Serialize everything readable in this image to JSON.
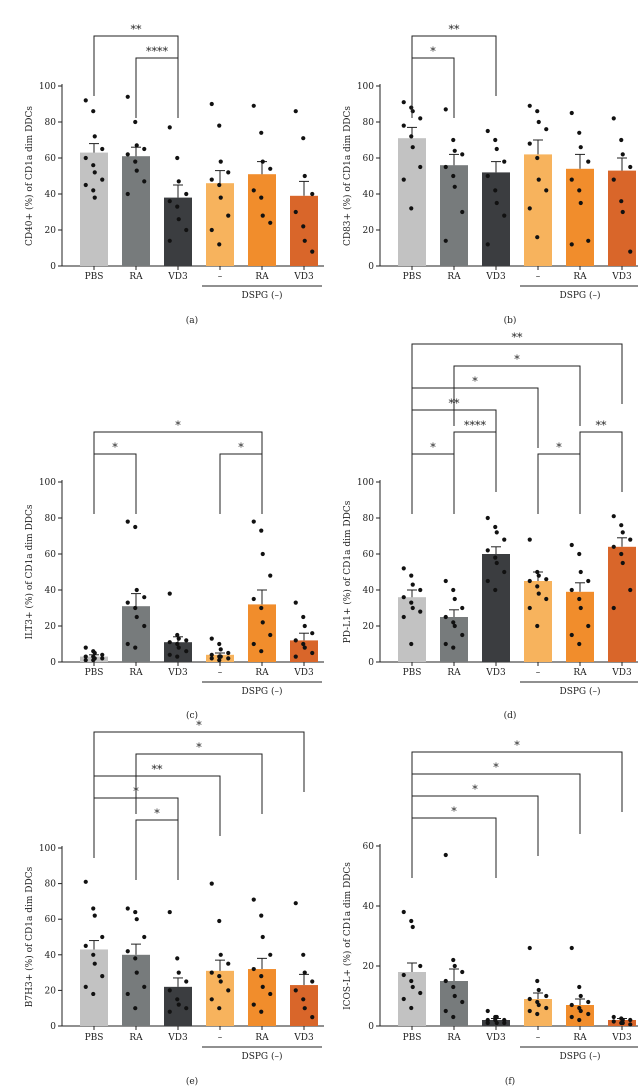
{
  "colors": {
    "PBS": "#c2c2c2",
    "RA": "#777b7c",
    "VD3": "#3b3d40",
    "DSPG_minus": "#f7b35d",
    "DSPG_RA": "#f18d2c",
    "DSPG_VD3": "#d9662a",
    "axis": "#222222",
    "dot": "#111111"
  },
  "chart_data": [
    {
      "type": "bar",
      "panel_label": "(a)",
      "ylabel": "CD40+ (%) of CD1a dim DDCs",
      "categories": [
        "PBS",
        "RA",
        "VD3",
        "–",
        "RA",
        "VD3"
      ],
      "group_label": "DSPG (–)",
      "values": [
        63,
        61,
        38,
        46,
        51,
        39
      ],
      "sem": [
        5,
        5,
        7,
        7,
        7,
        8
      ],
      "points": [
        [
          92,
          86,
          72,
          65,
          60,
          56,
          52,
          48,
          45,
          42,
          38
        ],
        [
          94,
          80,
          67,
          65,
          62,
          58,
          53,
          47,
          40
        ],
        [
          77,
          60,
          47,
          40,
          36,
          33,
          26,
          20,
          14
        ],
        [
          90,
          78,
          58,
          52,
          48,
          45,
          38,
          28,
          20,
          12
        ],
        [
          89,
          74,
          58,
          54,
          42,
          38,
          28,
          24
        ],
        [
          86,
          71,
          50,
          40,
          30,
          22,
          14,
          8
        ]
      ],
      "ylim": [
        0,
        100
      ],
      "yticks": [
        "0",
        "20",
        "40",
        "60",
        "80",
        "100"
      ],
      "significance": [
        {
          "from": 0,
          "to": 2,
          "label": "**"
        },
        {
          "from": 1,
          "to": 2,
          "label": "****"
        }
      ]
    },
    {
      "type": "bar",
      "panel_label": "(b)",
      "ylabel": "CD83+ (%) of CD1a dim DDCs",
      "categories": [
        "PBS",
        "RA",
        "VD3",
        "–",
        "RA",
        "VD3"
      ],
      "group_label": "DSPG (–)",
      "values": [
        71,
        56,
        52,
        62,
        54,
        53
      ],
      "sem": [
        6,
        6,
        6,
        8,
        8,
        7
      ],
      "points": [
        [
          91,
          88,
          86,
          82,
          78,
          72,
          66,
          55,
          48,
          32
        ],
        [
          87,
          70,
          64,
          62,
          55,
          50,
          44,
          30,
          14
        ],
        [
          75,
          70,
          65,
          58,
          50,
          42,
          35,
          28,
          12
        ],
        [
          89,
          86,
          80,
          76,
          68,
          60,
          48,
          42,
          32,
          16
        ],
        [
          85,
          74,
          66,
          58,
          48,
          42,
          35,
          14,
          12
        ],
        [
          82,
          70,
          62,
          55,
          48,
          36,
          30,
          8
        ]
      ],
      "ylim": [
        0,
        100
      ],
      "yticks": [
        "0",
        "20",
        "40",
        "60",
        "80",
        "100"
      ],
      "significance": [
        {
          "from": 0,
          "to": 1,
          "label": "*"
        },
        {
          "from": 0,
          "to": 2,
          "label": "**"
        }
      ]
    },
    {
      "type": "bar",
      "panel_label": "(c)",
      "ylabel": "ILT3+ (%) of CD1a dim DDCs",
      "categories": [
        "PBS",
        "RA",
        "VD3",
        "–",
        "RA",
        "VD3"
      ],
      "group_label": "DSPG (–)",
      "values": [
        3,
        31,
        11,
        4,
        32,
        12
      ],
      "sem": [
        1,
        7,
        3,
        1,
        8,
        4
      ],
      "points": [
        [
          8,
          6,
          5,
          4,
          3,
          3,
          2,
          2,
          1,
          1
        ],
        [
          78,
          75,
          40,
          36,
          33,
          30,
          25,
          20,
          10,
          8
        ],
        [
          38,
          15,
          13,
          12,
          11,
          10,
          8,
          6,
          4,
          3
        ],
        [
          13,
          10,
          7,
          5,
          4,
          3,
          3,
          2,
          2,
          1
        ],
        [
          78,
          73,
          60,
          48,
          35,
          30,
          22,
          15,
          10,
          6
        ],
        [
          33,
          25,
          20,
          16,
          12,
          10,
          8,
          5,
          3
        ]
      ],
      "ylim": [
        0,
        100
      ],
      "yticks": [
        "0",
        "20",
        "40",
        "60",
        "80",
        "100"
      ],
      "significance": [
        {
          "from": 0,
          "to": 1,
          "label": "*"
        },
        {
          "from": 3,
          "to": 4,
          "label": "*"
        },
        {
          "from": 0,
          "to": 4,
          "label": "*"
        }
      ]
    },
    {
      "type": "bar",
      "panel_label": "(d)",
      "ylabel": "PD-L1+ (%) of CD1a dim DDCs",
      "categories": [
        "PBS",
        "RA",
        "VD3",
        "–",
        "RA",
        "VD3"
      ],
      "group_label": "DSPG (–)",
      "values": [
        36,
        25,
        60,
        45,
        39,
        64
      ],
      "sem": [
        4,
        4,
        4,
        5,
        5,
        5
      ],
      "points": [
        [
          52,
          48,
          43,
          40,
          36,
          33,
          30,
          28,
          25,
          10
        ],
        [
          45,
          40,
          35,
          30,
          25,
          22,
          20,
          15,
          10,
          8
        ],
        [
          80,
          75,
          72,
          68,
          62,
          58,
          55,
          50,
          45,
          40
        ],
        [
          68,
          50,
          48,
          46,
          45,
          42,
          38,
          35,
          30,
          20
        ],
        [
          65,
          60,
          50,
          45,
          40,
          35,
          30,
          20,
          15,
          10
        ],
        [
          81,
          76,
          72,
          68,
          64,
          60,
          55,
          40,
          30
        ]
      ],
      "ylim": [
        0,
        100
      ],
      "yticks": [
        "0",
        "20",
        "40",
        "60",
        "80",
        "100"
      ],
      "significance": [
        {
          "from": 0,
          "to": 1,
          "label": "*"
        },
        {
          "from": 1,
          "to": 2,
          "label": "****"
        },
        {
          "from": 4,
          "to": 5,
          "label": "**"
        },
        {
          "from": 0,
          "to": 2,
          "label": "**"
        },
        {
          "from": 3,
          "to": 4,
          "label": "*"
        },
        {
          "from": 0,
          "to": 3,
          "label": "*"
        },
        {
          "from": 1,
          "to": 4,
          "label": "*"
        },
        {
          "from": 0,
          "to": 5,
          "label": "**"
        }
      ]
    },
    {
      "type": "bar",
      "panel_label": "(e)",
      "ylabel": "B7H3+ (%) of CD1a dim DDCs",
      "categories": [
        "PBS",
        "RA",
        "VD3",
        "–",
        "RA",
        "VD3"
      ],
      "group_label": "DSPG (–)",
      "values": [
        43,
        40,
        22,
        31,
        32,
        23
      ],
      "sem": [
        5,
        6,
        5,
        6,
        6,
        6
      ],
      "points": [
        [
          81,
          66,
          62,
          50,
          45,
          40,
          35,
          28,
          22,
          18
        ],
        [
          66,
          64,
          60,
          50,
          42,
          38,
          30,
          22,
          18,
          10
        ],
        [
          64,
          38,
          30,
          25,
          20,
          15,
          12,
          10,
          8
        ],
        [
          80,
          59,
          40,
          35,
          30,
          28,
          25,
          20,
          15,
          10
        ],
        [
          71,
          62,
          50,
          40,
          32,
          28,
          22,
          18,
          12,
          8
        ],
        [
          69,
          40,
          30,
          25,
          20,
          15,
          10,
          5
        ]
      ],
      "ylim": [
        0,
        100
      ],
      "yticks": [
        "0",
        "20",
        "40",
        "60",
        "80",
        "100"
      ],
      "significance": [
        {
          "from": 1,
          "to": 2,
          "label": "*"
        },
        {
          "from": 0,
          "to": 2,
          "label": "*"
        },
        {
          "from": 0,
          "to": 3,
          "label": "**"
        },
        {
          "from": 1,
          "to": 4,
          "label": "*"
        },
        {
          "from": 0,
          "to": 5,
          "label": "*"
        }
      ]
    },
    {
      "type": "bar",
      "panel_label": "(f)",
      "ylabel": "ICOS-L+ (%) of CD1a dim DDCs",
      "categories": [
        "PBS",
        "RA",
        "VD3",
        "–",
        "RA",
        "VD3"
      ],
      "group_label": "DSPG (–)",
      "values": [
        18,
        15,
        2,
        9,
        7,
        2
      ],
      "sem": [
        3,
        4,
        0.5,
        2,
        2,
        0.5
      ],
      "points": [
        [
          38,
          35,
          33,
          20,
          17,
          15,
          13,
          11,
          9,
          6
        ],
        [
          57,
          22,
          20,
          18,
          15,
          13,
          10,
          8,
          5,
          3
        ],
        [
          5,
          3,
          3,
          2,
          2,
          2,
          1,
          1,
          1
        ],
        [
          26,
          15,
          12,
          10,
          9,
          8,
          7,
          6,
          5,
          4
        ],
        [
          26,
          13,
          10,
          8,
          7,
          6,
          5,
          4,
          3,
          2
        ],
        [
          3,
          2.5,
          2,
          2,
          1.5,
          1,
          1,
          0.5
        ]
      ],
      "ylim": [
        0,
        60
      ],
      "yticks": [
        "0",
        "20",
        "40",
        "60"
      ],
      "significance": [
        {
          "from": 0,
          "to": 2,
          "label": "*"
        },
        {
          "from": 0,
          "to": 3,
          "label": "*"
        },
        {
          "from": 0,
          "to": 4,
          "label": "*"
        },
        {
          "from": 0,
          "to": 5,
          "label": "*"
        }
      ]
    }
  ]
}
